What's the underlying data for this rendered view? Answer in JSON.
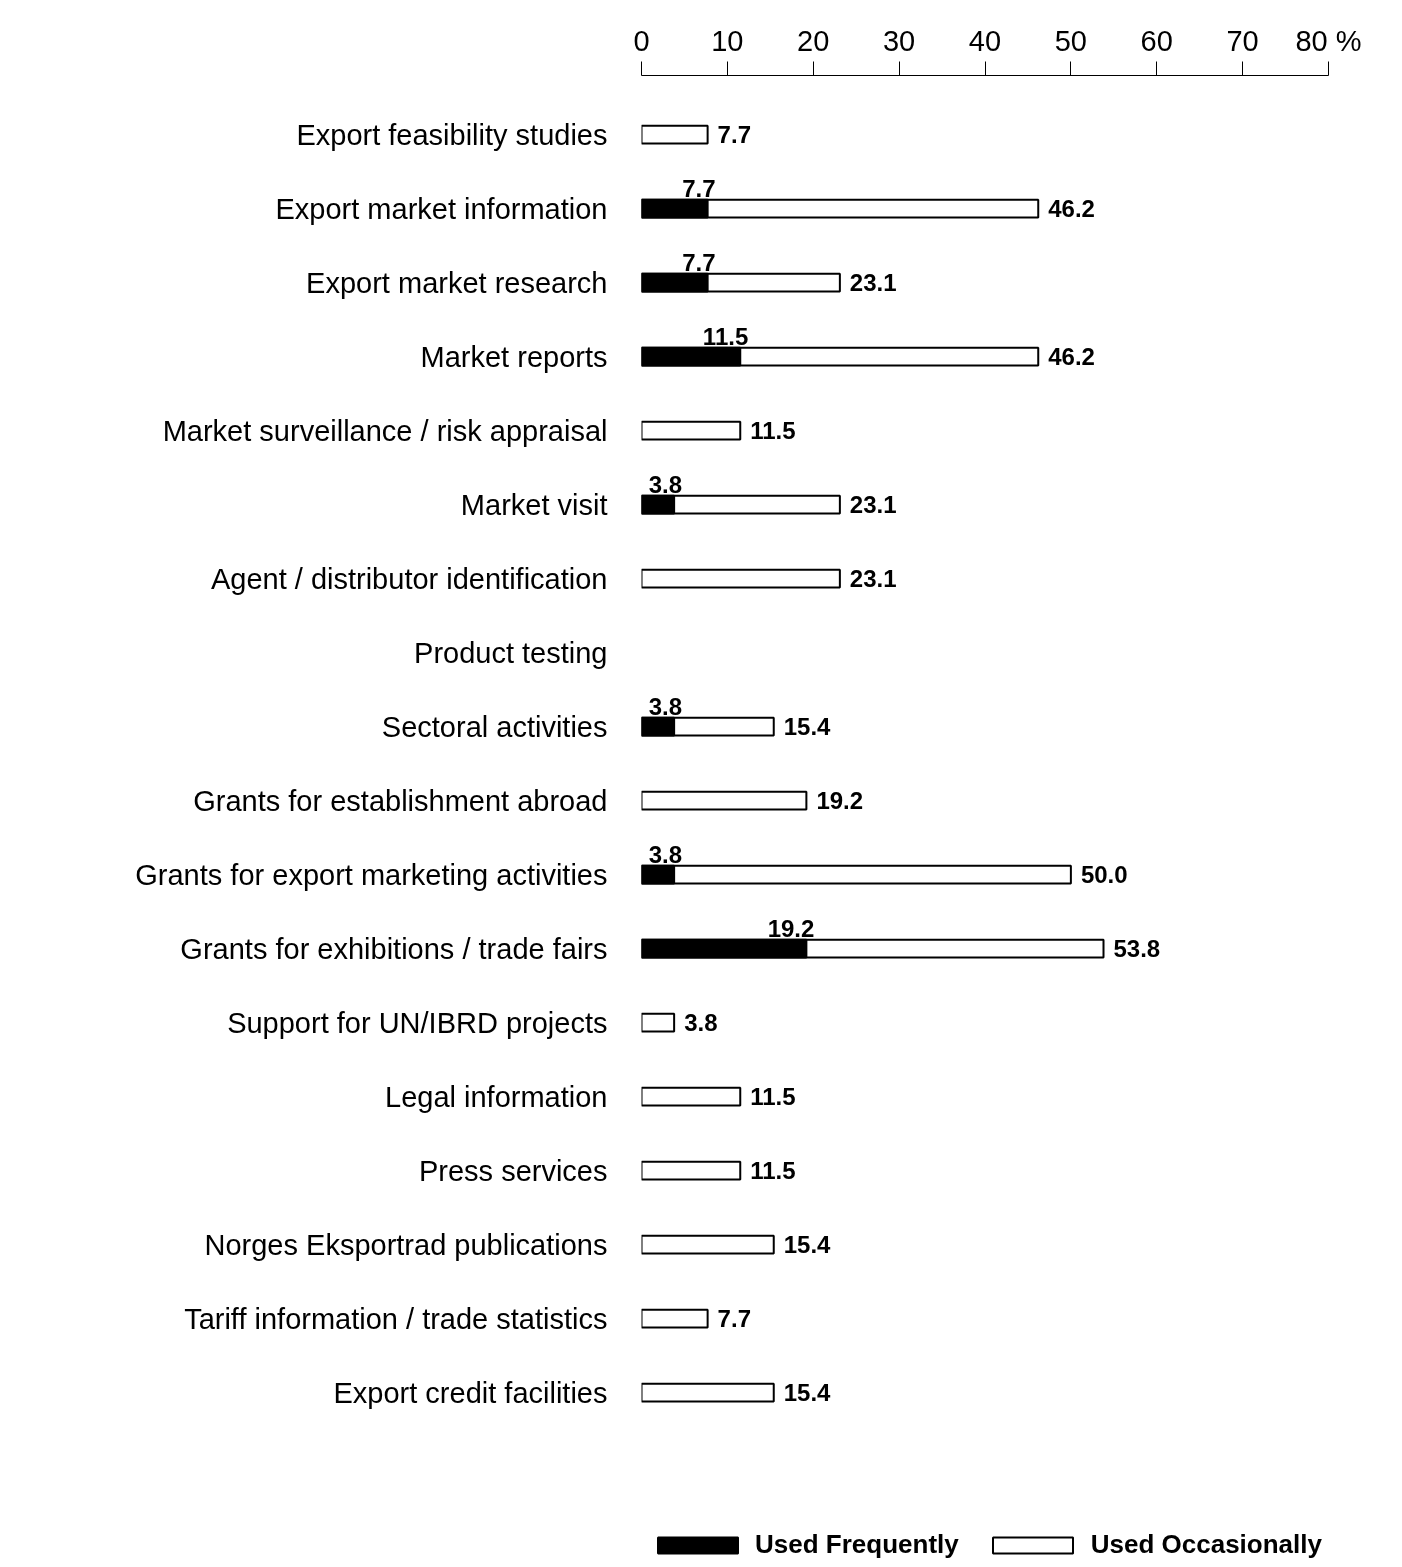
{
  "chart_data": {
    "type": "bar",
    "orientation": "horizontal",
    "categories": [
      "Export feasibility studies",
      "Export market information",
      "Export market research",
      "Market reports",
      "Market surveillance / risk appraisal",
      "Market visit",
      "Agent / distributor identification",
      "Product testing",
      "Sectoral activities",
      "Grants for establishment abroad",
      "Grants for export marketing activities",
      "Grants for exhibitions / trade fairs",
      "Support for UN/IBRD projects",
      "Legal information",
      "Press services",
      "Norges Eksportrad publications",
      "Tariff information / trade statistics",
      "Export credit facilities"
    ],
    "series": [
      {
        "name": "Used Frequently",
        "color": "#000000",
        "values": [
          null,
          7.7,
          7.7,
          11.5,
          null,
          3.8,
          null,
          null,
          3.8,
          null,
          3.8,
          19.2,
          null,
          null,
          null,
          null,
          null,
          null
        ],
        "value_labels": [
          null,
          "7.7",
          "7.7",
          "11.5",
          null,
          "3.8",
          null,
          null,
          "3.8",
          null,
          "3.8",
          "19.2",
          null,
          null,
          null,
          null,
          null,
          null
        ]
      },
      {
        "name": "Used Occasionally",
        "color": "#ffffff",
        "values": [
          7.7,
          46.2,
          23.1,
          46.2,
          11.5,
          23.1,
          23.1,
          null,
          15.4,
          19.2,
          50.0,
          53.8,
          3.8,
          11.5,
          11.5,
          15.4,
          7.7,
          15.4
        ],
        "value_labels": [
          "7.7",
          "46.2",
          "23.1",
          "46.2",
          "11.5",
          "23.1",
          "23.1",
          null,
          "15.4",
          "19.2",
          "50.0",
          "53.8",
          "3.8",
          "11.5",
          "11.5",
          "15.4",
          "7.7",
          "15.4"
        ]
      }
    ],
    "xlim": [
      0,
      80
    ],
    "xticks": [
      0,
      10,
      20,
      30,
      40,
      50,
      60,
      70,
      {
        "value": 80,
        "label": "80 %"
      }
    ],
    "grid": false,
    "legend": "bottom"
  }
}
